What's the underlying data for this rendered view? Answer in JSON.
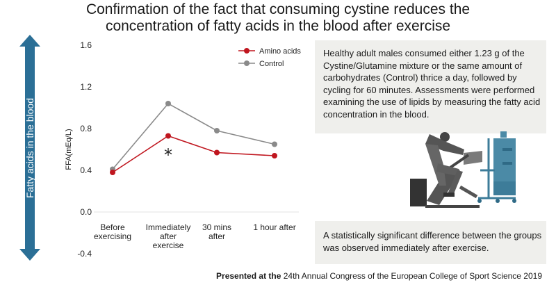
{
  "title_line1": "Confirmation of the fact that consuming cystine reduces the",
  "title_line2": "concentration of fatty acids in the blood after exercise",
  "side_label": "Fatty acids in the blood",
  "info_top": "Healthy adult males consumed either 1.23 g of the Cystine/Glutamine mixture or the same amount of carbohydrates (Control) thrice a day, followed by cycling for 60 minutes. Assessments were performed examining the use of lipids by measuring the fatty acid concentration in the blood.",
  "info_bottom": "A statistically significant difference between the groups was observed immediately after exercise.",
  "footer_prefix": "Presented at the",
  "footer_rest": " 24th Annual Congress of the European College of Sport Science 2019",
  "colors": {
    "amino": "#c0161f",
    "control": "#8a8a8a",
    "arrow": "#2b6f96",
    "info_bg": "#efefec"
  },
  "chart_data": {
    "type": "line",
    "ylabel": "FFA(mEq/L)",
    "ylim": [
      -0.4,
      1.6
    ],
    "yticks": [
      "1.6",
      "1.2",
      "0.8",
      "0.4",
      "0.0",
      "-0.4"
    ],
    "ytick_values": [
      1.6,
      1.2,
      0.8,
      0.4,
      0.0,
      -0.4
    ],
    "categories": [
      [
        "Before",
        "exercising"
      ],
      [
        "Immediately",
        "after",
        "exercise"
      ],
      [
        "30 mins",
        "after"
      ],
      [
        "1 hour after"
      ]
    ],
    "series": [
      {
        "name": "Amino acids",
        "values": [
          0.38,
          0.73,
          0.57,
          0.54
        ]
      },
      {
        "name": "Control",
        "values": [
          0.41,
          1.04,
          0.78,
          0.65
        ]
      }
    ],
    "annotation": {
      "text": "*",
      "category_index": 1,
      "value": 0.56
    },
    "legend_position": "top-right"
  }
}
